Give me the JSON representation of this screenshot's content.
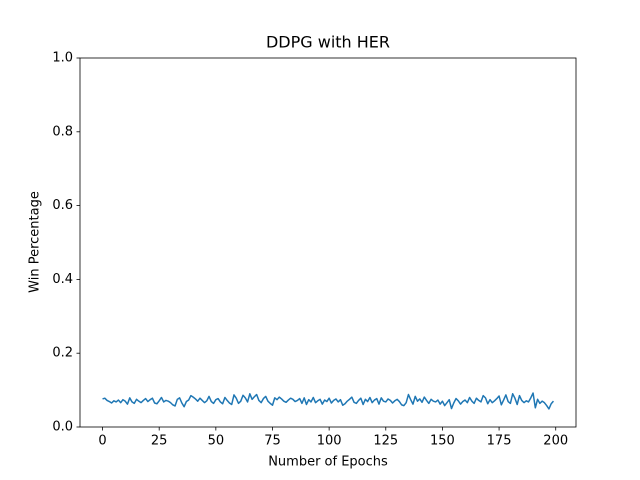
{
  "chart_data": {
    "type": "line",
    "title": "DDPG with HER",
    "x_label": "Number of Epochs",
    "y_label": "Win Percentage",
    "color": "#1f77b4",
    "x": [
      0,
      1,
      2,
      3,
      4,
      5,
      6,
      7,
      8,
      9,
      10,
      11,
      12,
      13,
      14,
      15,
      16,
      17,
      18,
      19,
      20,
      21,
      22,
      23,
      24,
      25,
      26,
      27,
      28,
      29,
      30,
      31,
      32,
      33,
      34,
      35,
      36,
      37,
      38,
      39,
      40,
      41,
      42,
      43,
      44,
      45,
      46,
      47,
      48,
      49,
      50,
      51,
      52,
      53,
      54,
      55,
      56,
      57,
      58,
      59,
      60,
      61,
      62,
      63,
      64,
      65,
      66,
      67,
      68,
      69,
      70,
      71,
      72,
      73,
      74,
      75,
      76,
      77,
      78,
      79,
      80,
      81,
      82,
      83,
      84,
      85,
      86,
      87,
      88,
      89,
      90,
      91,
      92,
      93,
      94,
      95,
      96,
      97,
      98,
      99,
      100,
      101,
      102,
      103,
      104,
      105,
      106,
      107,
      108,
      109,
      110,
      111,
      112,
      113,
      114,
      115,
      116,
      117,
      118,
      119,
      120,
      121,
      122,
      123,
      124,
      125,
      126,
      127,
      128,
      129,
      130,
      131,
      132,
      133,
      134,
      135,
      136,
      137,
      138,
      139,
      140,
      141,
      142,
      143,
      144,
      145,
      146,
      147,
      148,
      149,
      150,
      151,
      152,
      153,
      154,
      155,
      156,
      157,
      158,
      159,
      160,
      161,
      162,
      163,
      164,
      165,
      166,
      167,
      168,
      169,
      170,
      171,
      172,
      173,
      174,
      175,
      176,
      177,
      178,
      179,
      180,
      181,
      182,
      183,
      184,
      185,
      186,
      187,
      188,
      189,
      190,
      191,
      192,
      193,
      194,
      195,
      196,
      197,
      198,
      199
    ],
    "values": [
      0.076,
      0.078,
      0.072,
      0.069,
      0.065,
      0.071,
      0.068,
      0.073,
      0.066,
      0.074,
      0.07,
      0.062,
      0.079,
      0.068,
      0.064,
      0.075,
      0.07,
      0.066,
      0.072,
      0.077,
      0.069,
      0.074,
      0.078,
      0.065,
      0.063,
      0.071,
      0.08,
      0.068,
      0.072,
      0.07,
      0.066,
      0.06,
      0.057,
      0.075,
      0.079,
      0.065,
      0.055,
      0.069,
      0.073,
      0.085,
      0.081,
      0.076,
      0.07,
      0.078,
      0.072,
      0.066,
      0.071,
      0.083,
      0.069,
      0.064,
      0.074,
      0.077,
      0.068,
      0.063,
      0.08,
      0.072,
      0.065,
      0.061,
      0.087,
      0.078,
      0.064,
      0.07,
      0.086,
      0.079,
      0.068,
      0.09,
      0.075,
      0.082,
      0.088,
      0.072,
      0.066,
      0.077,
      0.083,
      0.07,
      0.064,
      0.059,
      0.079,
      0.074,
      0.081,
      0.076,
      0.07,
      0.067,
      0.073,
      0.078,
      0.075,
      0.069,
      0.072,
      0.077,
      0.064,
      0.079,
      0.061,
      0.074,
      0.068,
      0.08,
      0.066,
      0.071,
      0.075,
      0.062,
      0.073,
      0.069,
      0.078,
      0.065,
      0.072,
      0.076,
      0.068,
      0.074,
      0.059,
      0.063,
      0.07,
      0.075,
      0.081,
      0.067,
      0.064,
      0.072,
      0.078,
      0.061,
      0.075,
      0.069,
      0.08,
      0.066,
      0.073,
      0.077,
      0.062,
      0.079,
      0.07,
      0.068,
      0.076,
      0.072,
      0.065,
      0.071,
      0.075,
      0.069,
      0.06,
      0.058,
      0.066,
      0.088,
      0.074,
      0.062,
      0.083,
      0.07,
      0.076,
      0.067,
      0.081,
      0.072,
      0.064,
      0.075,
      0.07,
      0.068,
      0.073,
      0.062,
      0.07,
      0.058,
      0.066,
      0.074,
      0.05,
      0.065,
      0.077,
      0.071,
      0.062,
      0.069,
      0.073,
      0.066,
      0.08,
      0.07,
      0.064,
      0.078,
      0.072,
      0.068,
      0.085,
      0.079,
      0.063,
      0.074,
      0.066,
      0.071,
      0.077,
      0.084,
      0.06,
      0.073,
      0.087,
      0.069,
      0.064,
      0.09,
      0.078,
      0.061,
      0.085,
      0.072,
      0.066,
      0.071,
      0.068,
      0.079,
      0.092,
      0.052,
      0.075,
      0.064,
      0.07,
      0.066,
      0.058,
      0.049,
      0.063,
      0.07
    ],
    "xlim": [
      -9.95,
      208.95
    ],
    "xticks": [
      0,
      25,
      50,
      75,
      100,
      125,
      150,
      175,
      200
    ],
    "ylim": [
      0,
      1
    ],
    "yticks": [
      {
        "value": 0,
        "label": "0.0"
      },
      0.2,
      0.4,
      0.6,
      0.8,
      {
        "value": 1,
        "label": "1.0"
      }
    ]
  }
}
